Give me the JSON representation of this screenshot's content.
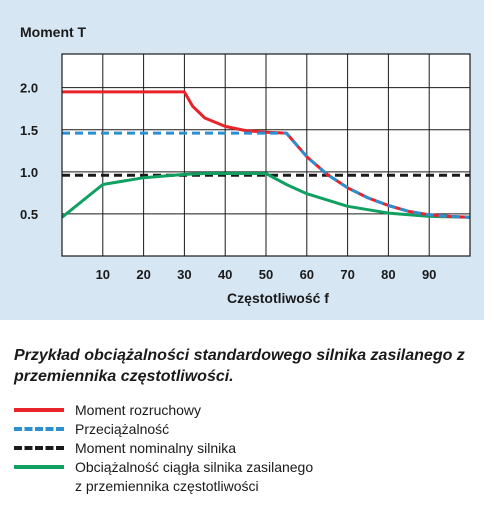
{
  "chart_data": {
    "type": "line",
    "ylabel": "Moment T",
    "xlabel": "Częstotliwość f",
    "x_ticks": [
      10,
      20,
      30,
      40,
      50,
      60,
      70,
      80,
      90
    ],
    "y_ticks": [
      "0.5",
      "1.0",
      "1.5",
      "2.0"
    ],
    "xlim": [
      0,
      100
    ],
    "ylim": [
      0,
      2.4
    ],
    "grid": true,
    "series": [
      {
        "name": "Moment rozruchowy",
        "color": "#e8232a",
        "dash": "solid",
        "x": [
          0,
          30,
          32,
          35,
          40,
          45,
          50,
          55,
          60,
          65,
          70,
          75,
          80,
          85,
          90,
          95,
          100
        ],
        "y": [
          1.95,
          1.95,
          1.78,
          1.64,
          1.54,
          1.49,
          1.47,
          1.46,
          1.18,
          0.97,
          0.81,
          0.69,
          0.6,
          0.53,
          0.49,
          0.47,
          0.46
        ]
      },
      {
        "name": "Przeciążalność",
        "color": "#2b8fd0",
        "dash": "dashed",
        "x": [
          0,
          55,
          60,
          65,
          70,
          75,
          80,
          85,
          90,
          95,
          100
        ],
        "y": [
          1.46,
          1.46,
          1.18,
          0.97,
          0.81,
          0.69,
          0.6,
          0.53,
          0.49,
          0.47,
          0.46
        ]
      },
      {
        "name": "Moment nominalny silnika",
        "color": "#1a1a1a",
        "dash": "dashed",
        "x": [
          0,
          100
        ],
        "y": [
          0.96,
          0.96
        ]
      },
      {
        "name": "Obciążalność ciągła silnika zasilanego z przemiennika częstotliwości",
        "color": "#12a062",
        "dash": "solid",
        "x": [
          0,
          10,
          20,
          30,
          35,
          40,
          45,
          50,
          55,
          60,
          70,
          80,
          90,
          100
        ],
        "y": [
          0.46,
          0.85,
          0.93,
          0.97,
          0.98,
          0.98,
          0.98,
          0.98,
          0.85,
          0.74,
          0.59,
          0.51,
          0.47,
          0.46
        ]
      }
    ]
  },
  "caption": "Przykład obciążalności standardowego silnika zasilanego z przemiennika częstotliwości.",
  "legend": [
    {
      "label": "Moment rozruchowy",
      "color": "#e8232a",
      "dash": "solid"
    },
    {
      "label": "Przeciążalność",
      "color": "#2b8fd0",
      "dash": "dashed"
    },
    {
      "label": "Moment nominalny silnika",
      "color": "#1a1a1a",
      "dash": "dashed"
    },
    {
      "label_line1": "Obciążalność ciągła silnika zasilanego",
      "label_line2": "z przemiennika częstotliwości",
      "color": "#12a062",
      "dash": "solid"
    }
  ]
}
